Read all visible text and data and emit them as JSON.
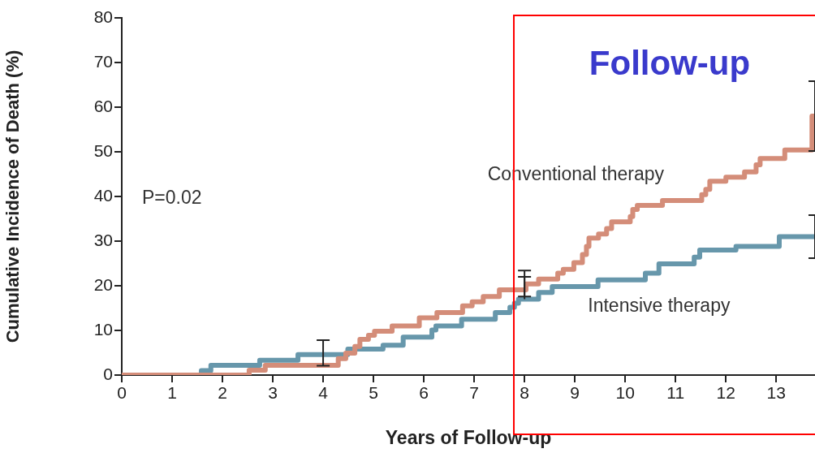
{
  "chart_data": {
    "type": "step",
    "xlabel": "Years of Follow-up",
    "ylabel": "Cumulative Incidence of Death (%)",
    "xlim": [
      0,
      13.77
    ],
    "xticks": [
      0,
      1,
      2,
      3,
      4,
      5,
      6,
      7,
      8,
      9,
      10,
      11,
      12,
      13
    ],
    "ylim": [
      0,
      80
    ],
    "yticks": [
      0,
      10,
      20,
      30,
      40,
      50,
      60,
      70,
      80
    ],
    "grid": false,
    "legend": false,
    "marker": "none",
    "line_style": "solid",
    "annotations": [
      "P=0.02",
      "Follow-up"
    ],
    "series": [
      {
        "name": "Conventional therapy",
        "color": "#d48d79",
        "x": [
          0,
          2.53,
          2.85,
          4.3,
          4.45,
          4.63,
          4.73,
          4.9,
          5.02,
          5.37,
          5.91,
          6.26,
          6.77,
          6.96,
          7.18,
          7.5,
          8,
          8.03,
          8.28,
          8.66,
          8.77,
          8.98,
          9.15,
          9.23,
          9.28,
          9.47,
          9.63,
          9.73,
          10.1,
          10.15,
          10.24,
          10.74,
          11.52,
          11.6,
          11.68,
          12.0,
          12.37,
          12.6,
          12.68,
          13.17,
          13.71,
          13.77
        ],
        "values": [
          0,
          1.1,
          2.2,
          3.7,
          4.9,
          6.4,
          8.0,
          8.9,
          9.8,
          11.0,
          12.8,
          14.0,
          15.5,
          16.4,
          17.6,
          19.1,
          19.1,
          20.4,
          21.5,
          22.8,
          23.7,
          25.2,
          27,
          28.8,
          30.7,
          31.6,
          32.8,
          34.3,
          35.5,
          37.1,
          38.0,
          39.1,
          40.4,
          41.6,
          43.4,
          44.3,
          45.5,
          47.1,
          48.5,
          50.4,
          58.0,
          58.0
        ],
        "errors": [
          null,
          null,
          null,
          null,
          null,
          null,
          null,
          null,
          null,
          null,
          null,
          null,
          null,
          null,
          null,
          null,
          [
            17.6,
            23.4
          ],
          null,
          null,
          null,
          null,
          null,
          null,
          null,
          null,
          null,
          null,
          null,
          null,
          null,
          null,
          null,
          null,
          null,
          null,
          null,
          null,
          null,
          null,
          null,
          null,
          7.8
        ]
      },
      {
        "name": "Intensive therapy",
        "color": "#6797ab",
        "x": [
          0,
          1.58,
          1.77,
          2.74,
          3.5,
          4,
          4.49,
          5.19,
          5.59,
          6.16,
          6.24,
          6.75,
          7.42,
          7.71,
          7.8,
          7.88,
          8,
          8.28,
          8.55,
          9.46,
          10.4,
          10.67,
          11.37,
          11.48,
          12.2,
          13.06,
          13.77
        ],
        "values": [
          0,
          1.0,
          2.2,
          3.3,
          4.6,
          4.6,
          5.8,
          6.7,
          8.5,
          10.1,
          11.0,
          12.5,
          14.0,
          15.2,
          16.1,
          17.0,
          17.0,
          18.5,
          19.8,
          21.3,
          22.8,
          24.9,
          26.4,
          28.0,
          28.8,
          31.0,
          31.0
        ],
        "errors": [
          null,
          null,
          null,
          null,
          null,
          [
            2.1,
            7.8
          ],
          null,
          null,
          null,
          null,
          null,
          null,
          null,
          null,
          null,
          null,
          [
            17.0,
            22.0
          ],
          null,
          null,
          null,
          null,
          null,
          null,
          null,
          null,
          null,
          4.8
        ]
      }
    ]
  }
}
